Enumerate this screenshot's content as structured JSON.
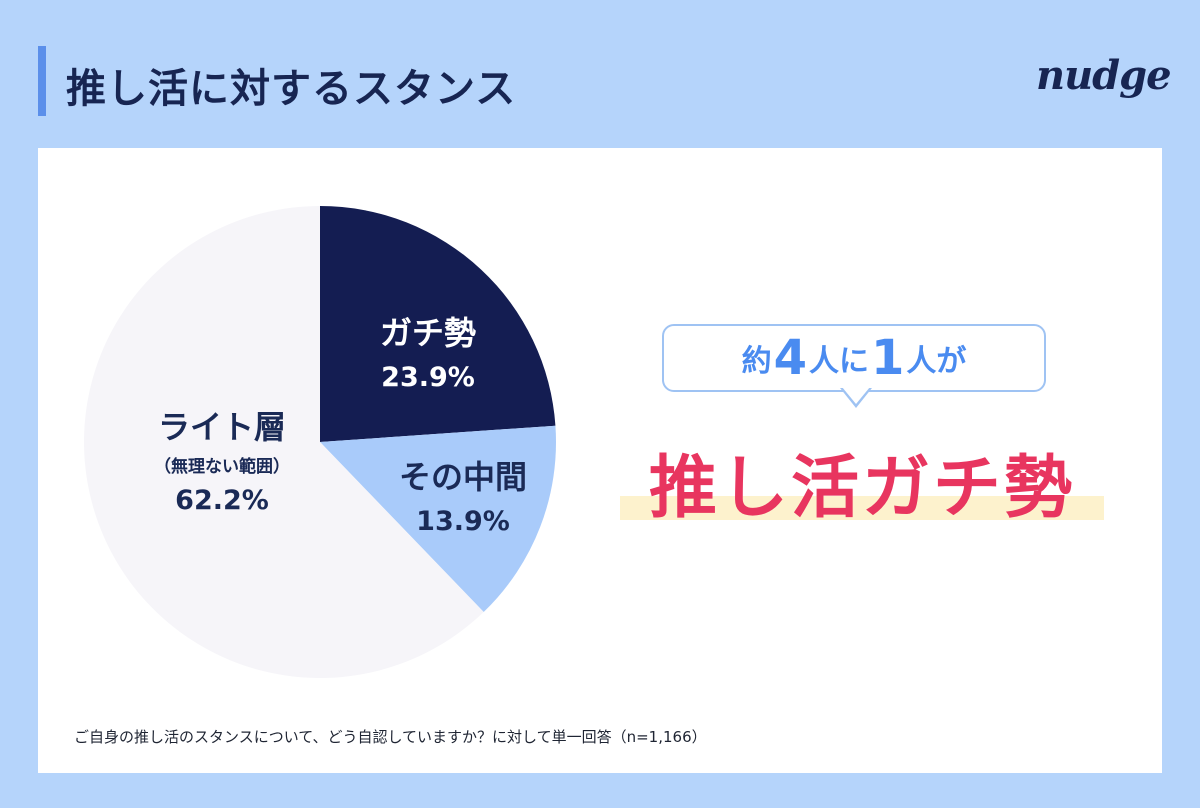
{
  "header": {
    "title": "推し活に対するスタンス",
    "logo_text": "nudge"
  },
  "chart_data": {
    "type": "pie",
    "title": "推し活に対するスタンス",
    "slices": [
      {
        "label": "ガチ勢",
        "value": 23.9,
        "display": "23.9%",
        "color": "#141d52"
      },
      {
        "label": "その中間",
        "value": 13.9,
        "display": "13.9%",
        "color": "#a9cbfa"
      },
      {
        "label": "ライト層",
        "sublabel": "（無理ない範囲）",
        "value": 62.2,
        "display": "62.2%",
        "color": "#f6f5f9"
      }
    ],
    "start_angle": "12 o'clock",
    "direction": "clockwise",
    "legend": "none (labels inside slices)"
  },
  "callout": {
    "prefix": "約",
    "num1": "4",
    "middle": "人に",
    "num2": "1",
    "suffix": "人が",
    "headline": "推し活ガチ勢"
  },
  "footnote": "ご自身の推し活のスタンスについて、どう自認していますか？に対して単一回答（n=1,166）",
  "colors": {
    "background": "#b5d4fb",
    "title_bar": "#5b8fea",
    "headline": "#e8355f",
    "bubble_text": "#4a8bf0",
    "dark_navy": "#141d52"
  }
}
